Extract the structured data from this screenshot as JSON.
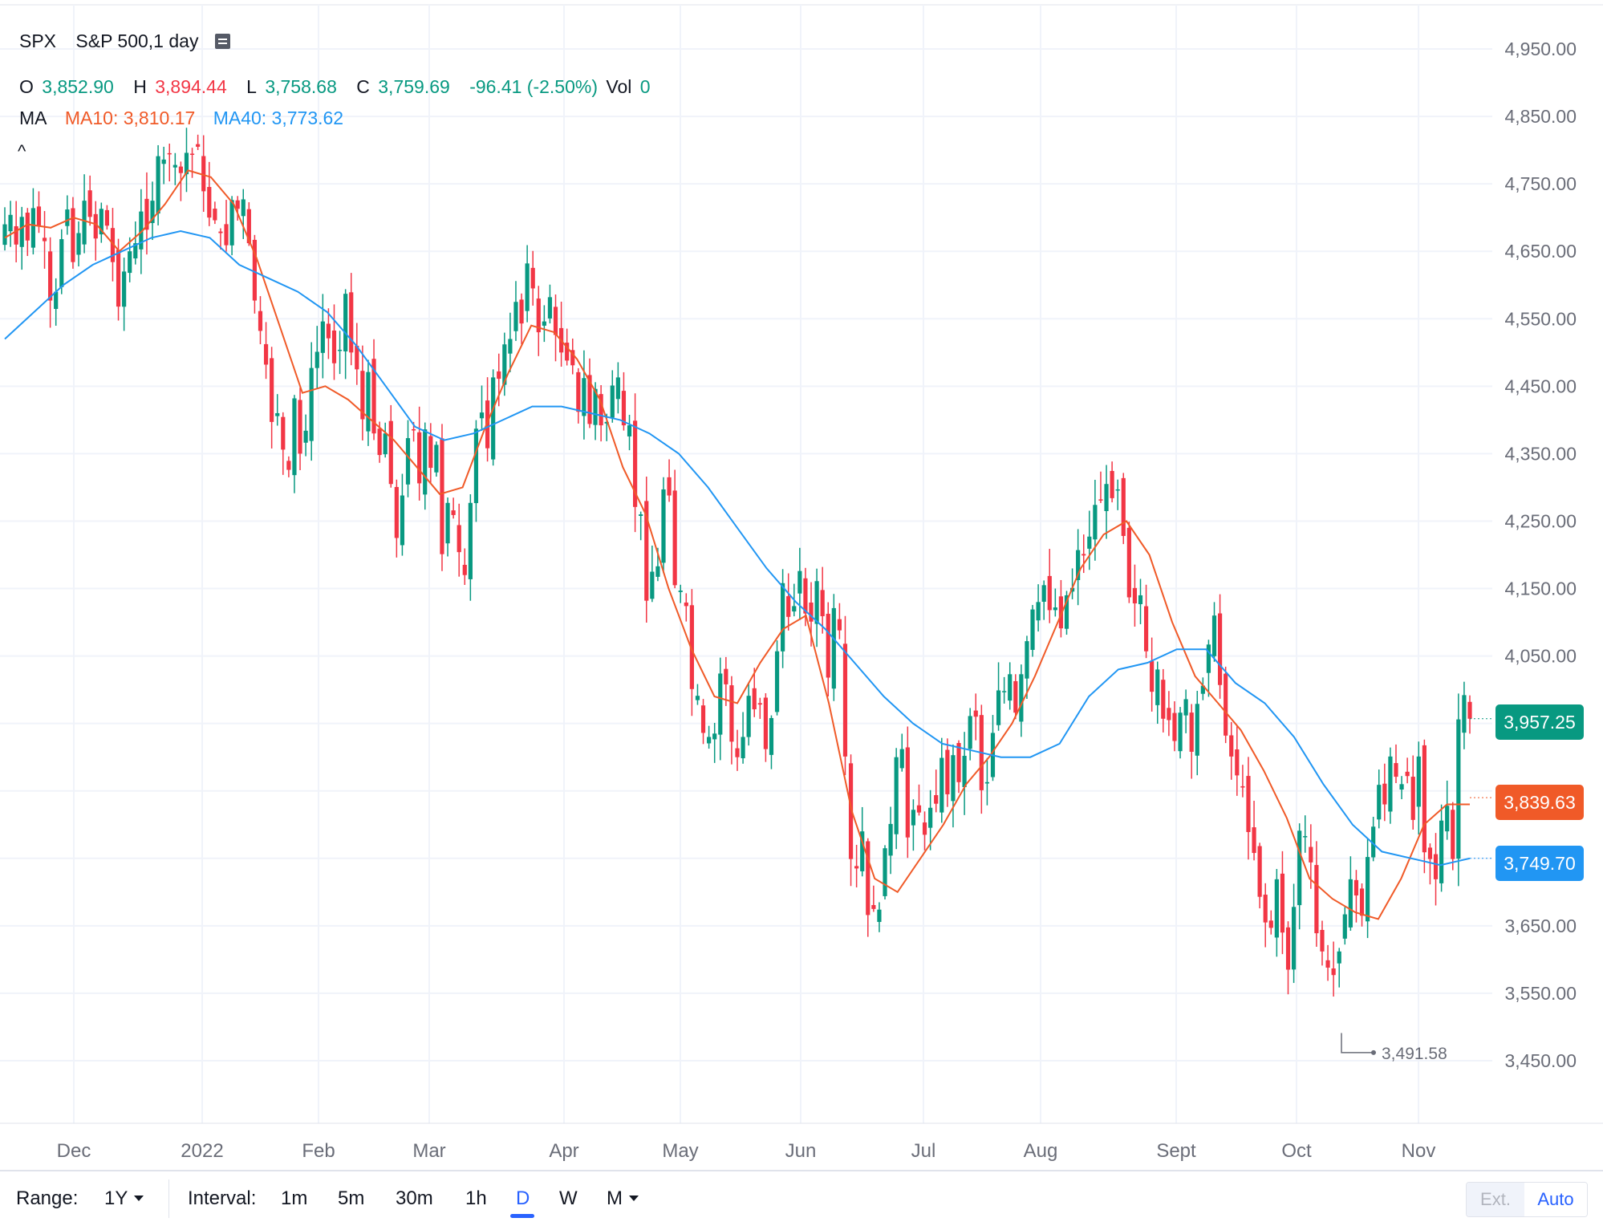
{
  "header": {
    "symbol": "SPX",
    "name": "S&P 500,1 day",
    "o_label": "O",
    "o_value": "3,852.90",
    "h_label": "H",
    "h_value": "3,894.44",
    "l_label": "L",
    "l_value": "3,758.68",
    "c_label": "C",
    "c_value": "3,759.69",
    "change": "-96.41 (-2.50%)",
    "vol_label": "Vol",
    "vol_value": "0",
    "ma_label": "MA",
    "ma10": "MA10: 3,810.17",
    "ma40": "MA40: 3,773.62",
    "collapse_glyph": "^"
  },
  "price_labels": {
    "last": "3,957.25",
    "ma10": "3,839.63",
    "ma40": "3,749.70",
    "low_marker": "3,491.58"
  },
  "toolbar": {
    "range_label": "Range:",
    "range_value": "1Y",
    "interval_label": "Interval:",
    "intervals": [
      "1m",
      "5m",
      "30m",
      "1h",
      "D",
      "W",
      "M"
    ],
    "active_interval": "D",
    "ext": "Ext.",
    "auto": "Auto"
  },
  "colors": {
    "up": "#089981",
    "down": "#f23645",
    "ma10": "#f05a28",
    "ma40": "#2196f3",
    "grid": "#f0f3fa"
  },
  "chart_data": {
    "type": "candlestick",
    "title": "S&P 500,1 day",
    "y_axis": {
      "ticks": [
        "4,950.00",
        "4,850.00",
        "4,750.00",
        "4,650.00",
        "4,550.00",
        "4,450.00",
        "4,350.00",
        "4,250.00",
        "4,150.00",
        "4,050.00",
        "3,650.00",
        "3,550.00",
        "3,450.00"
      ],
      "range": [
        3350,
        5000
      ],
      "position": "right"
    },
    "x_axis": {
      "ticks": [
        "Dec",
        "2022",
        "Feb",
        "Mar",
        "Apr",
        "May",
        "Jun",
        "Jul",
        "Aug",
        "Sept",
        "Oct",
        "Nov"
      ]
    },
    "grid": true,
    "series": [
      {
        "name": "SPX",
        "close": [
          4690,
          4704,
          4660,
          4701,
          4666,
          4714,
          4688,
          4665,
          4577,
          4590,
          4668,
          4712,
          4634,
          4677,
          4725,
          4701,
          4669,
          4713,
          4688,
          4634,
          4568,
          4620,
          4650,
          4662,
          4709,
          4682,
          4725,
          4791,
          4786,
          4794,
          4778,
          4766,
          4796,
          4793,
          4805,
          4739,
          4700,
          4696,
          4677,
          4659,
          4726,
          4713,
          4727,
          4662,
          4577,
          4532,
          4482,
          4397,
          4410,
          4356,
          4326,
          4432,
          4350,
          4384,
          4477,
          4501,
          4546,
          4521,
          4484,
          4504,
          4587,
          4500,
          4475,
          4401,
          4471,
          4380,
          4348,
          4380,
          4305,
          4225,
          4288,
          4373,
          4385,
          4306,
          4386,
          4329,
          4363,
          4201,
          4277,
          4259,
          4204,
          4170,
          4277,
          4387,
          4411,
          4358,
          4463,
          4461,
          4512,
          4520,
          4575,
          4543,
          4632,
          4595,
          4530,
          4546,
          4582,
          4526,
          4500,
          4488,
          4481,
          4412,
          4462,
          4394,
          4446,
          4392,
          4397,
          4451,
          4463,
          4392,
          4392,
          4271,
          4260,
          4132,
          4175,
          4183,
          4297,
          4288,
          4155,
          4147,
          4124,
          4001,
          3991,
          3936,
          3930,
          3935,
          4024,
          4008,
          3923,
          3900,
          3930,
          3991,
          3971,
          3978,
          3912,
          3958,
          4057,
          4158,
          4108,
          4124,
          4176,
          4113,
          4101,
          4161,
          4109,
          4018,
          4121,
          4088,
          3901,
          3749,
          3735,
          3790,
          3666,
          3675,
          3674,
          3765,
          3801,
          3900,
          3912,
          3781,
          3822,
          3818,
          3785,
          3825,
          3831,
          3899,
          3845,
          3903,
          3863,
          3902,
          3961,
          3960,
          3851,
          3863,
          3936,
          3999,
          3998,
          4023,
          3966,
          4023,
          4072,
          4119,
          4130,
          4155,
          4118,
          4122,
          4091,
          4140,
          4151,
          4207,
          4199,
          4227,
          4274,
          4281,
          4305,
          4284,
          4297,
          4228,
          4137,
          4128,
          4140,
          4057,
          3997,
          4030,
          3957,
          3955,
          3924,
          3966,
          3986,
          3908,
          3979,
          4006,
          4067,
          4110,
          4007,
          3932,
          3901,
          3873,
          3855,
          3789,
          3758,
          3693,
          3655,
          3647,
          3719,
          3640,
          3585,
          3678,
          3791,
          3783,
          3744,
          3639,
          3612,
          3588,
          3577,
          3612,
          3667,
          3719,
          3695,
          3665,
          3752,
          3797,
          3859,
          3830,
          3901,
          3871,
          3860,
          3872,
          3807,
          3901,
          3759,
          3749,
          3719,
          3806,
          3828,
          3749,
          3956,
          3992,
          3957
        ]
      },
      {
        "name": "MA10",
        "values_note_free": true,
        "sample_points": [
          4670,
          4690,
          4685,
          4700,
          4690,
          4650,
          4680,
          4720,
          4770,
          4760,
          4720,
          4640,
          4540,
          4440,
          4450,
          4430,
          4400,
          4370,
          4330,
          4290,
          4300,
          4390,
          4470,
          4540,
          4530,
          4490,
          4430,
          4330,
          4260,
          4150,
          4060,
          3990,
          3980,
          4040,
          4090,
          4110,
          3980,
          3820,
          3720,
          3700,
          3750,
          3800,
          3860,
          3900,
          3950,
          4020,
          4100,
          4180,
          4230,
          4250,
          4200,
          4100,
          4020,
          3980,
          3940,
          3880,
          3810,
          3720,
          3690,
          3670,
          3660,
          3720,
          3800,
          3830,
          3830
        ]
      },
      {
        "name": "MA40",
        "sample_points": [
          4520,
          4560,
          4600,
          4630,
          4650,
          4670,
          4680,
          4670,
          4630,
          4610,
          4590,
          4560,
          4510,
          4450,
          4390,
          4370,
          4380,
          4400,
          4420,
          4420,
          4410,
          4400,
          4380,
          4350,
          4300,
          4240,
          4180,
          4130,
          4090,
          4040,
          3990,
          3950,
          3920,
          3910,
          3900,
          3900,
          3920,
          3990,
          4030,
          4040,
          4060,
          4060,
          4010,
          3980,
          3930,
          3860,
          3800,
          3760,
          3750,
          3740,
          3750
        ]
      }
    ]
  }
}
